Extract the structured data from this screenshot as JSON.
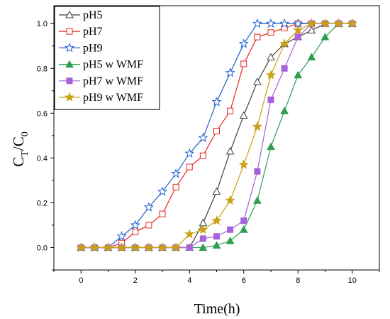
{
  "chart_data": {
    "type": "line",
    "title": "",
    "xlabel": "Time(h)",
    "ylabel_main": "C",
    "ylabel_sub1": "T",
    "ylabel_mid": "/C",
    "ylabel_sub2": "0",
    "xlim": [
      -1,
      11
    ],
    "ylim": [
      -0.1,
      1.08
    ],
    "xticks": [
      "0",
      "2",
      "4",
      "6",
      "8",
      "10"
    ],
    "yticks": [
      "0.0",
      "0.2",
      "0.4",
      "0.6",
      "0.8",
      "1.0"
    ],
    "grid": false,
    "legend_position": "top-left",
    "series": [
      {
        "name": "pH5",
        "color": "#404040",
        "marker": "triangle-open",
        "x": [
          0,
          0.5,
          1,
          1.5,
          2,
          2.5,
          3,
          3.5,
          4,
          4.5,
          5,
          5.5,
          6,
          6.5,
          7,
          7.5,
          8,
          8.5,
          9,
          9.5,
          10
        ],
        "y": [
          0,
          0,
          0,
          0,
          0,
          0,
          0,
          0,
          0,
          0.11,
          0.25,
          0.43,
          0.59,
          0.74,
          0.85,
          0.91,
          0.94,
          0.97,
          1.0,
          1.0,
          1.0
        ]
      },
      {
        "name": "pH7",
        "color": "#e8261e",
        "marker": "square-open",
        "x": [
          0,
          0.5,
          1,
          1.5,
          2,
          2.5,
          3,
          3.5,
          4,
          4.5,
          5,
          5.5,
          6,
          6.5,
          7,
          7.5,
          8,
          8.5,
          9,
          9.5,
          10
        ],
        "y": [
          0,
          0,
          0,
          0.02,
          0.07,
          0.1,
          0.15,
          0.27,
          0.36,
          0.41,
          0.52,
          0.61,
          0.82,
          0.94,
          0.96,
          0.98,
          1.0,
          1.0,
          1.0,
          1.0,
          1.0
        ]
      },
      {
        "name": "pH9",
        "color": "#1f5fd1",
        "marker": "star-open",
        "x": [
          0,
          0.5,
          1,
          1.5,
          2,
          2.5,
          3,
          3.5,
          4,
          4.5,
          5,
          5.5,
          6,
          6.5,
          7,
          7.5,
          8,
          8.5,
          9,
          9.5,
          10
        ],
        "y": [
          0,
          0,
          0,
          0.05,
          0.1,
          0.18,
          0.25,
          0.33,
          0.42,
          0.49,
          0.65,
          0.78,
          0.91,
          1.0,
          1.0,
          1.0,
          1.0,
          1.0,
          1.0,
          1.0,
          1.0
        ]
      },
      {
        "name": "pH5 w WMF",
        "color": "#2e9e4e",
        "marker": "triangle-filled",
        "x": [
          0,
          0.5,
          1,
          1.5,
          2,
          2.5,
          3,
          3.5,
          4,
          4.5,
          5,
          5.5,
          6,
          6.5,
          7,
          7.5,
          8,
          8.5,
          9,
          9.5,
          10
        ],
        "y": [
          0,
          0,
          0,
          0,
          0,
          0,
          0,
          0,
          0,
          0,
          0.01,
          0.03,
          0.08,
          0.21,
          0.45,
          0.61,
          0.77,
          0.85,
          0.94,
          1.0,
          1.0
        ]
      },
      {
        "name": "pH7 w WMF",
        "color": "#a662d8",
        "marker": "square-filled",
        "x": [
          0,
          0.5,
          1,
          1.5,
          2,
          2.5,
          3,
          3.5,
          4,
          4.5,
          5,
          5.5,
          6,
          6.5,
          7,
          7.5,
          8,
          8.5,
          9,
          9.5,
          10
        ],
        "y": [
          0,
          0,
          0,
          0,
          0,
          0,
          0,
          0,
          0,
          0.04,
          0.05,
          0.08,
          0.12,
          0.34,
          0.66,
          0.8,
          0.94,
          1.0,
          1.0,
          1.0,
          1.0
        ]
      },
      {
        "name": "pH9 w WMF",
        "color": "#c9a114",
        "marker": "star-filled",
        "x": [
          0,
          0.5,
          1,
          1.5,
          2,
          2.5,
          3,
          3.5,
          4,
          4.5,
          5,
          5.5,
          6,
          6.5,
          7,
          7.5,
          8,
          8.5,
          9,
          9.5,
          10
        ],
        "y": [
          0,
          0,
          0,
          0,
          0,
          0,
          0,
          0,
          0.06,
          0.08,
          0.12,
          0.21,
          0.37,
          0.54,
          0.77,
          0.91,
          0.97,
          1.0,
          1.0,
          1.0,
          1.0
        ]
      }
    ]
  }
}
